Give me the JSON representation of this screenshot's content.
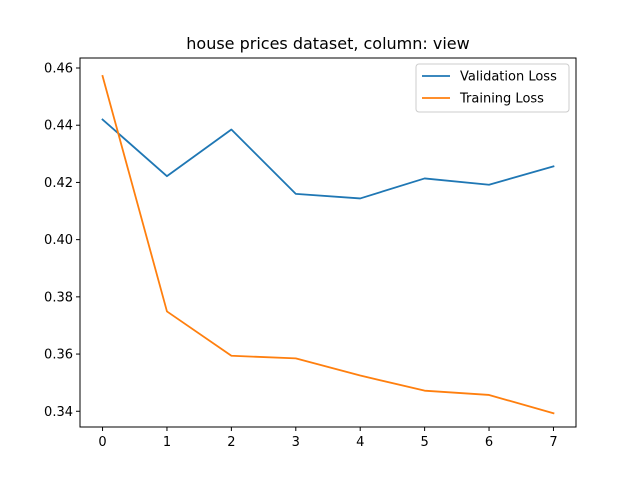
{
  "chart_data": {
    "type": "line",
    "title": "house prices dataset, column: view",
    "xlabel": "",
    "ylabel": "",
    "x": [
      0,
      1,
      2,
      3,
      4,
      5,
      6,
      7
    ],
    "xlim": [
      -0.35,
      7.35
    ],
    "ylim": [
      0.3345,
      0.4635
    ],
    "xticks": [
      "0",
      "1",
      "2",
      "3",
      "4",
      "5",
      "6",
      "7"
    ],
    "yticks": [
      "0.34",
      "0.36",
      "0.38",
      "0.40",
      "0.42",
      "0.44",
      "0.46"
    ],
    "grid": false,
    "legend_position": "top-right",
    "series": [
      {
        "name": "Validation Loss",
        "color": "#1f77b4",
        "values": [
          0.442,
          0.4222,
          0.4385,
          0.416,
          0.4144,
          0.4214,
          0.4192,
          0.4256
        ]
      },
      {
        "name": "Training Loss",
        "color": "#ff7f0e",
        "values": [
          0.4572,
          0.3749,
          0.3594,
          0.3585,
          0.3525,
          0.3472,
          0.3457,
          0.3393
        ]
      }
    ]
  }
}
